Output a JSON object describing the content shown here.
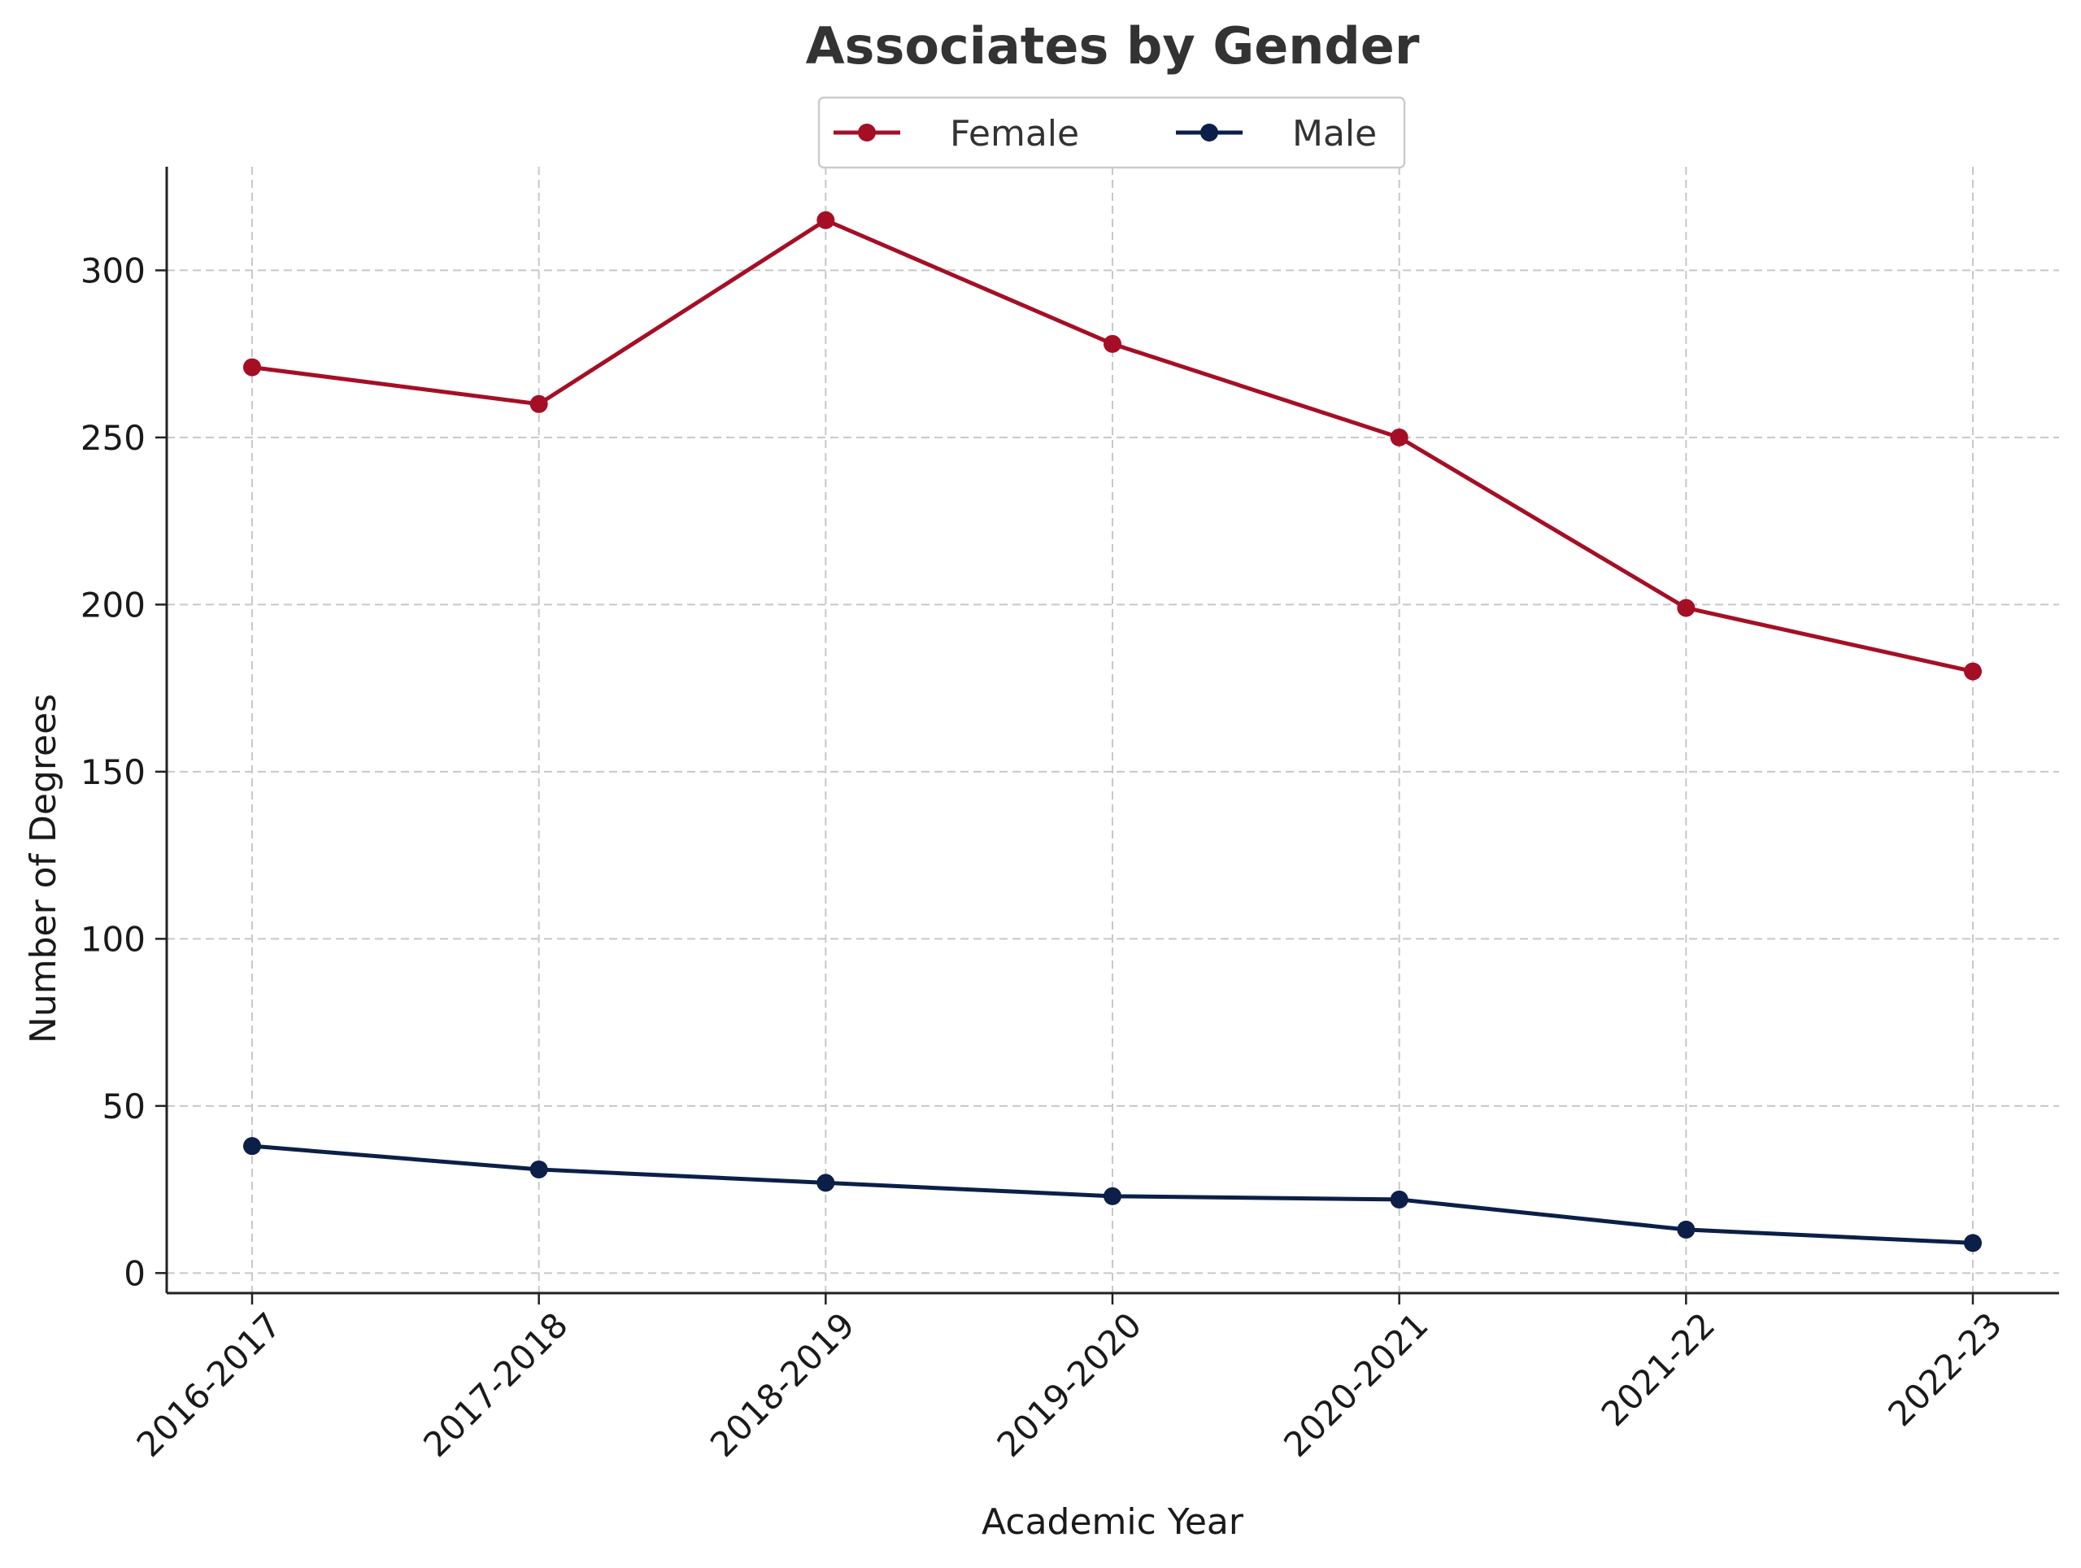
{
  "chart_data": {
    "type": "line",
    "title": "Associates by Gender",
    "xlabel": "Academic Year",
    "ylabel": "Number of Degrees",
    "categories": [
      "2016-2017",
      "2017-2018",
      "2018-2019",
      "2019-2020",
      "2020-2021",
      "2021-22",
      "2022-23"
    ],
    "series": [
      {
        "name": "Female",
        "color": "#a50f26",
        "values": [
          271,
          260,
          315,
          278,
          250,
          199,
          180
        ]
      },
      {
        "name": "Male",
        "color": "#0c1f48",
        "values": [
          38,
          31,
          27,
          23,
          22,
          13,
          9
        ]
      }
    ],
    "ylim": [
      -6,
      331
    ],
    "yticks": [
      0,
      50,
      100,
      150,
      200,
      250,
      300
    ],
    "grid": true,
    "legend_position": "top-center"
  }
}
